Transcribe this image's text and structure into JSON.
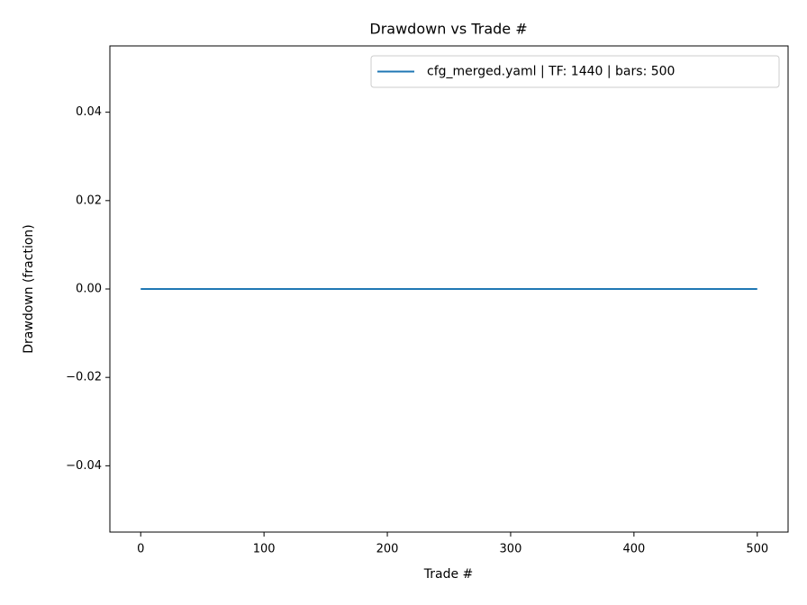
{
  "chart_data": {
    "type": "line",
    "title": "Drawdown vs Trade #",
    "x_label": "Trade #",
    "y_label": "Drawdown (fraction)",
    "x": [
      0,
      500
    ],
    "series": [
      {
        "name": "cfg_merged.yaml | TF: 1440 | bars: 500",
        "color": "#1f77b4",
        "values": [
          0,
          0
        ]
      }
    ],
    "xlim": [
      -25,
      525
    ],
    "xticks": [
      0,
      100,
      200,
      300,
      400,
      500
    ],
    "ylim": [
      -0.055,
      0.055
    ],
    "yticks": [
      {
        "value": -0.04,
        "label": "−0.04"
      },
      {
        "value": -0.02,
        "label": "−0.02"
      },
      {
        "value": 0,
        "label": "0.00"
      },
      0.02,
      0.04
    ],
    "grid": false,
    "legend": "upper right"
  }
}
